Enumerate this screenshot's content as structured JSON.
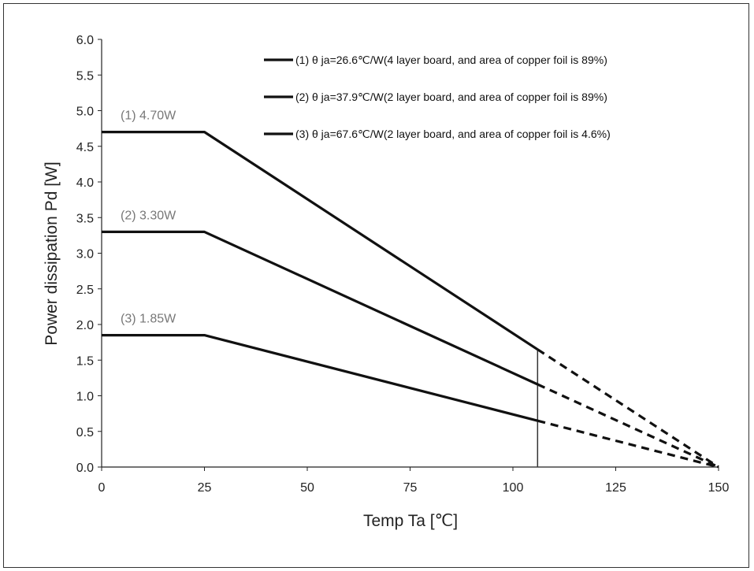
{
  "chart_data": {
    "type": "line",
    "xlabel": "Temp Ta [℃]",
    "ylabel": "Power dissipation Pd [W]",
    "xlim": [
      0,
      150
    ],
    "ylim": [
      0,
      6.0
    ],
    "xticks": [
      0,
      25,
      50,
      75,
      100,
      125,
      150
    ],
    "yticks": [
      "0.0",
      "0.5",
      "1.0",
      "1.5",
      "2.0",
      "2.5",
      "3.0",
      "3.5",
      "4.0",
      "4.5",
      "5.0",
      "5.5",
      "6.0"
    ],
    "grid": false,
    "legend_position": "top-right",
    "vertical_marker_x": 106,
    "series": [
      {
        "name": "(1) θ ja=26.6℃/W(4 layer board, and area of copper foil is 89%)",
        "annotation": "(1) 4.70W",
        "solid": [
          [
            0,
            4.7
          ],
          [
            25,
            4.7
          ],
          [
            106,
            1.65
          ]
        ],
        "dashed": [
          [
            106,
            1.65
          ],
          [
            150,
            0
          ]
        ]
      },
      {
        "name": "(2) θ ja=37.9℃/W(2 layer board, and area of copper foil is 89%)",
        "annotation": "(2) 3.30W",
        "solid": [
          [
            0,
            3.3
          ],
          [
            25,
            3.3
          ],
          [
            106,
            1.16
          ]
        ],
        "dashed": [
          [
            106,
            1.16
          ],
          [
            150,
            0
          ]
        ]
      },
      {
        "name": "(3) θ ja=67.6℃/W(2 layer board, and area of copper foil is 4.6%)",
        "annotation": "(3) 1.85W",
        "solid": [
          [
            0,
            1.85
          ],
          [
            25,
            1.85
          ],
          [
            106,
            0.65
          ]
        ],
        "dashed": [
          [
            106,
            0.65
          ],
          [
            150,
            0
          ]
        ]
      }
    ]
  }
}
